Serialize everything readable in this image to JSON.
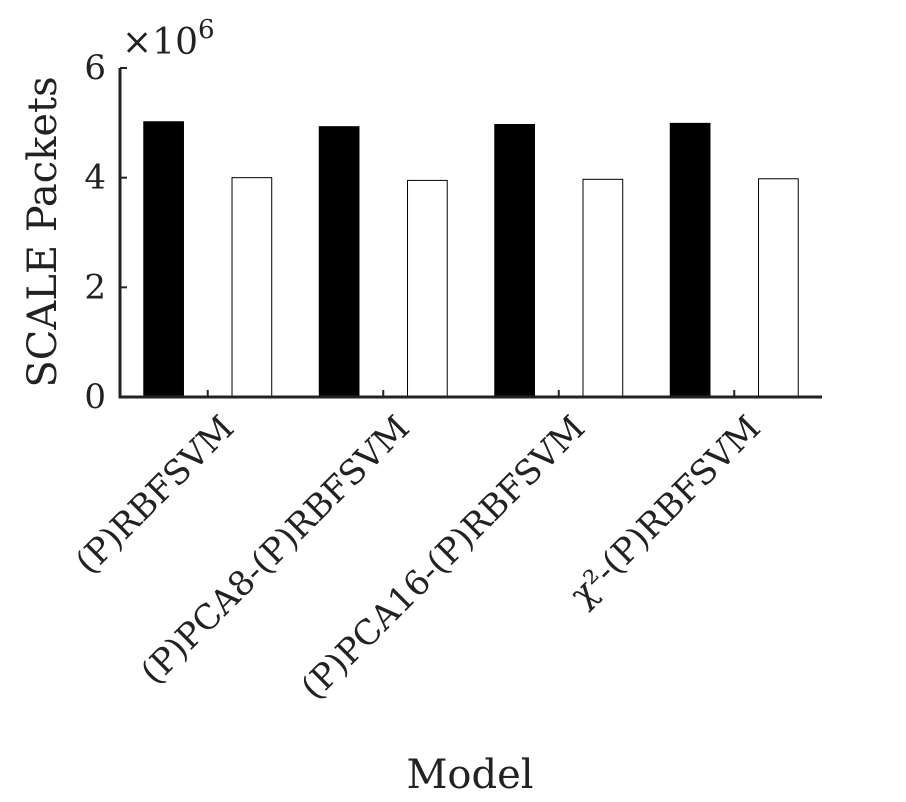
{
  "chart_data": {
    "type": "bar",
    "categories": [
      "(P)RBFSVM",
      "(P)PCA8-(P)RBFSVM",
      "(P)PCA16-(P)RBFSVM",
      "χ²-(P)RBFSVM"
    ],
    "series": [
      {
        "color": "#000000",
        "values": [
          5.02,
          4.93,
          4.97,
          4.99
        ]
      },
      {
        "color": "#ffffff",
        "values": [
          0.01,
          0.01,
          0.01,
          0.01
        ]
      },
      {
        "color": "#ffffff",
        "values": [
          4.0,
          3.95,
          3.97,
          3.98
        ]
      }
    ],
    "xlabel": "Model",
    "ylabel": "SCALE Packets",
    "ylim": [
      0,
      6
    ],
    "yticks": [
      "0",
      "2",
      "4",
      "6"
    ],
    "ytick_values": [
      0,
      2,
      4,
      6
    ],
    "y_multiplier": "×10",
    "y_multiplier_exp": "6",
    "grid": false
  }
}
